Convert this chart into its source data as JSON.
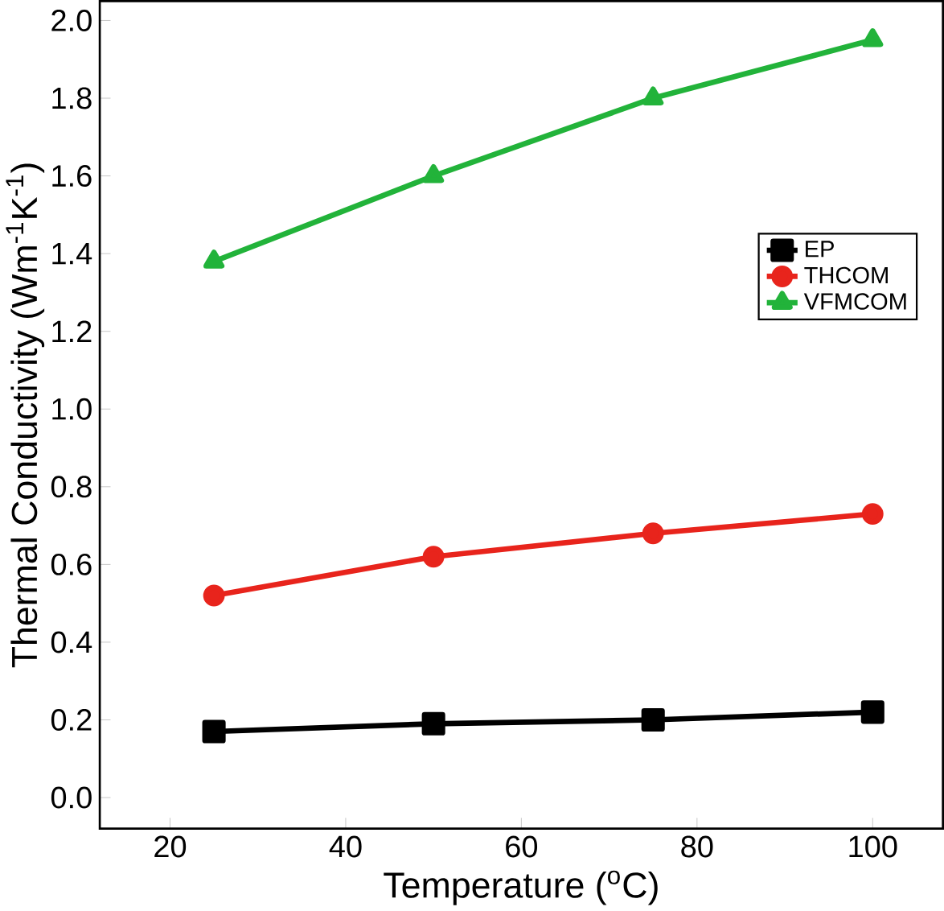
{
  "chart_data": {
    "type": "line",
    "xlabel": "Temperature ($^{o}$C)",
    "ylabel": "Thermal Conductivity (Wm$^{-1}$K$^{-1}$)",
    "x": [
      25,
      50,
      75,
      100
    ],
    "series": [
      {
        "name": "EP",
        "color": "#000000",
        "marker": "square",
        "values": [
          0.17,
          0.19,
          0.2,
          0.22
        ]
      },
      {
        "name": "THCOM",
        "color": "#e8241c",
        "marker": "circle",
        "values": [
          0.52,
          0.62,
          0.68,
          0.73
        ]
      },
      {
        "name": "VFMCOM",
        "color": "#22b33a",
        "marker": "triangle",
        "values": [
          1.38,
          1.6,
          1.8,
          1.95
        ]
      }
    ],
    "xlim": [
      12,
      108
    ],
    "ylim": [
      -0.08,
      2.05
    ],
    "xticks": [
      20,
      40,
      60,
      80,
      100
    ],
    "yticks": [
      {
        "value": 0,
        "label": "0.0"
      },
      {
        "value": 0.2,
        "label": "0.2"
      },
      {
        "value": 0.4,
        "label": "0.4"
      },
      {
        "value": 0.6,
        "label": "0.6"
      },
      {
        "value": 0.8,
        "label": "0.8"
      },
      {
        "value": 1.0,
        "label": "1.0"
      },
      {
        "value": 1.2,
        "label": "1.2"
      },
      {
        "value": 1.4,
        "label": "1.4"
      },
      {
        "value": 1.6,
        "label": "1.6"
      },
      {
        "value": 1.8,
        "label": "1.8"
      },
      {
        "value": 2.0,
        "label": "2.0"
      }
    ],
    "grid": false,
    "legend": "right",
    "line_style": "solid"
  }
}
